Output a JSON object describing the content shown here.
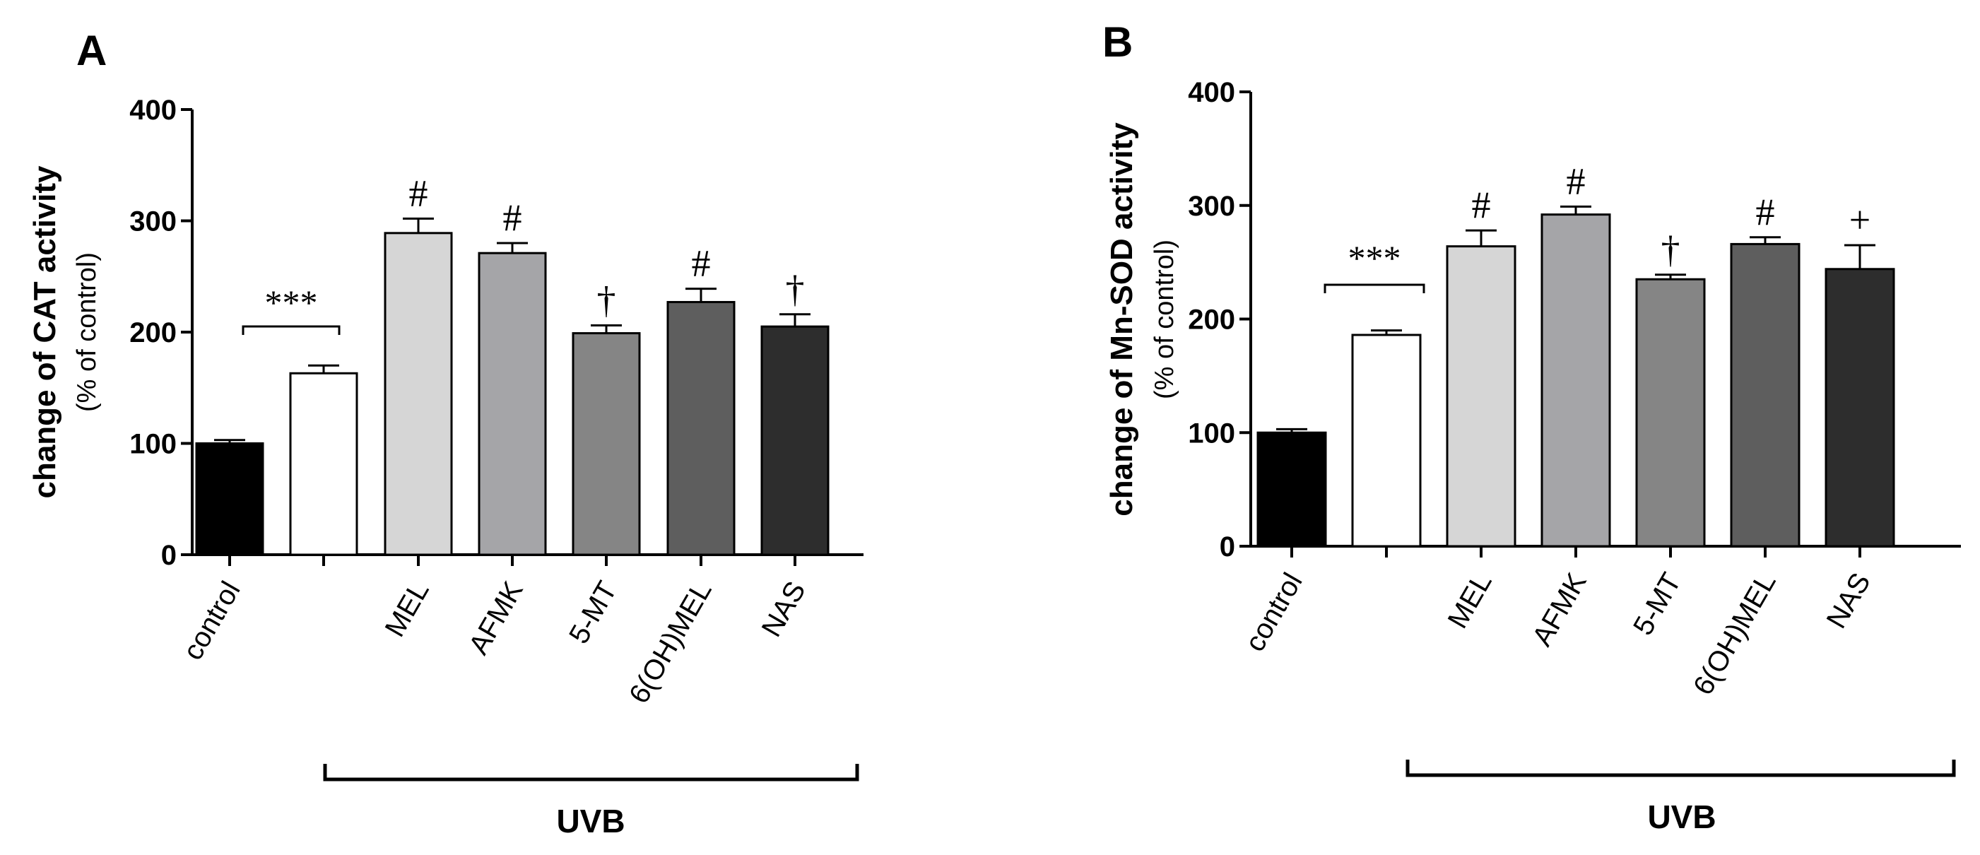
{
  "chart_data": [
    {
      "type": "bar",
      "panel": "A",
      "ylabel": "change of CAT activity",
      "ylabel_sub": "(% of control)",
      "ylim": [
        0,
        400
      ],
      "yticks": [
        "0",
        "100",
        "200",
        "300",
        "400"
      ],
      "categories": [
        "control",
        "",
        "MEL",
        "AFMK",
        "5-MT",
        "6(OH)MEL",
        "NAS"
      ],
      "values": [
        100,
        163,
        289,
        271,
        199,
        227,
        205
      ],
      "errors": [
        3,
        7,
        13,
        9,
        7,
        12,
        11
      ],
      "colors": [
        "#000000",
        "#ffffff",
        "#d6d6d6",
        "#a5a5a8",
        "#858585",
        "#5e5e5e",
        "#2d2d2d"
      ],
      "significance": [
        "",
        "",
        "#",
        "#",
        "†",
        "#",
        "†"
      ],
      "comparison": {
        "label": "***"
      },
      "group_label": "UVB"
    },
    {
      "type": "bar",
      "panel": "B",
      "ylabel": "change of Mn-SOD activity",
      "ylabel_sub": "(% of control)",
      "ylim": [
        0,
        400
      ],
      "yticks": [
        "0",
        "100",
        "200",
        "300",
        "400"
      ],
      "categories": [
        "control",
        "",
        "MEL",
        "AFMK",
        "5-MT",
        "6(OH)MEL",
        "NAS"
      ],
      "values": [
        100,
        186,
        264,
        292,
        235,
        266,
        244
      ],
      "errors": [
        3,
        4,
        14,
        7,
        4,
        6,
        21
      ],
      "colors": [
        "#000000",
        "#ffffff",
        "#d6d6d6",
        "#a5a5a8",
        "#858585",
        "#5e5e5e",
        "#2d2d2d"
      ],
      "significance": [
        "",
        "",
        "#",
        "#",
        "†",
        "#",
        "+"
      ],
      "comparison": {
        "label": "***"
      },
      "group_label": "UVB"
    }
  ]
}
